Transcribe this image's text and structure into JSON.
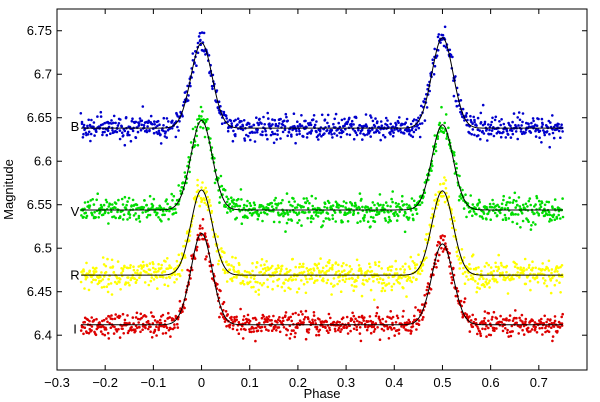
{
  "chart_data": {
    "type": "scatter",
    "title": "",
    "xlabel": "Phase",
    "ylabel": "Magnitude",
    "xlim": [
      -0.3,
      0.8
    ],
    "ylim": [
      6.775,
      6.36
    ],
    "y_inverted": true,
    "grid": false,
    "legend": "none",
    "xticks": [
      -0.3,
      -0.2,
      -0.1,
      0,
      0.1,
      0.2,
      0.3,
      0.4,
      0.5,
      0.6,
      0.7
    ],
    "xtick_labels": [
      "−0.3",
      "−0.2",
      "−0.1",
      "0",
      "0.1",
      "0.2",
      "0.3",
      "0.4",
      "0.5",
      "0.6",
      "0.7"
    ],
    "yticks": [
      6.4,
      6.45,
      6.5,
      6.55,
      6.6,
      6.65,
      6.7,
      6.75
    ],
    "ytick_labels": [
      "6.4",
      "6.45",
      "6.5",
      "6.55",
      "6.6",
      "6.65",
      "6.7",
      "6.75"
    ],
    "phase_range": [
      -0.25,
      0.75
    ],
    "eclipse_width": 0.022,
    "fit_color": "#000000",
    "series": [
      {
        "name": "I",
        "color": "#dd0000",
        "baseline": 6.412,
        "primary_depth": 0.105,
        "secondary_depth": 0.093,
        "scatter": 0.0065,
        "label_y": 6.407
      },
      {
        "name": "R",
        "color": "#ffff00",
        "baseline": 6.469,
        "primary_depth": 0.098,
        "secondary_depth": 0.097,
        "scatter": 0.0085,
        "label_y": 6.469
      },
      {
        "name": "V",
        "color": "#00dd00",
        "baseline": 6.544,
        "primary_depth": 0.103,
        "secondary_depth": 0.098,
        "scatter": 0.0075,
        "label_y": 6.542
      },
      {
        "name": "B",
        "color": "#0000cc",
        "baseline": 6.638,
        "primary_depth": 0.098,
        "secondary_depth": 0.104,
        "scatter": 0.007,
        "label_y": 6.64
      }
    ]
  }
}
